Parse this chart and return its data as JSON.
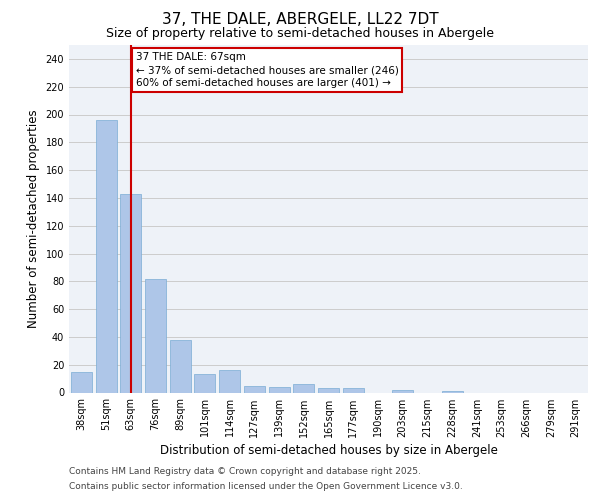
{
  "title": "37, THE DALE, ABERGELE, LL22 7DT",
  "subtitle": "Size of property relative to semi-detached houses in Abergele",
  "xlabel": "Distribution of semi-detached houses by size in Abergele",
  "ylabel": "Number of semi-detached properties",
  "categories": [
    "38sqm",
    "51sqm",
    "63sqm",
    "76sqm",
    "89sqm",
    "101sqm",
    "114sqm",
    "127sqm",
    "139sqm",
    "152sqm",
    "165sqm",
    "177sqm",
    "190sqm",
    "203sqm",
    "215sqm",
    "228sqm",
    "241sqm",
    "253sqm",
    "266sqm",
    "279sqm",
    "291sqm"
  ],
  "values": [
    15,
    196,
    143,
    82,
    38,
    13,
    16,
    5,
    4,
    6,
    3,
    3,
    0,
    2,
    0,
    1,
    0,
    0,
    0,
    0,
    0
  ],
  "bar_color": "#aec6e8",
  "bar_edge_color": "#7aadd4",
  "vline_x": 2,
  "vline_label": "37 THE DALE: 67sqm",
  "annotation_line1": "← 37% of semi-detached houses are smaller (246)",
  "annotation_line2": "60% of semi-detached houses are larger (401) →",
  "annotation_box_color": "#ffffff",
  "annotation_box_edge": "#cc0000",
  "ylim": [
    0,
    250
  ],
  "yticks": [
    0,
    20,
    40,
    60,
    80,
    100,
    120,
    140,
    160,
    180,
    200,
    220,
    240
  ],
  "grid_color": "#cccccc",
  "background_color": "#eef2f8",
  "footer1": "Contains HM Land Registry data © Crown copyright and database right 2025.",
  "footer2": "Contains public sector information licensed under the Open Government Licence v3.0.",
  "title_fontsize": 11,
  "subtitle_fontsize": 9,
  "axis_label_fontsize": 8.5,
  "tick_fontsize": 7,
  "annotation_fontsize": 7.5,
  "footer_fontsize": 6.5
}
